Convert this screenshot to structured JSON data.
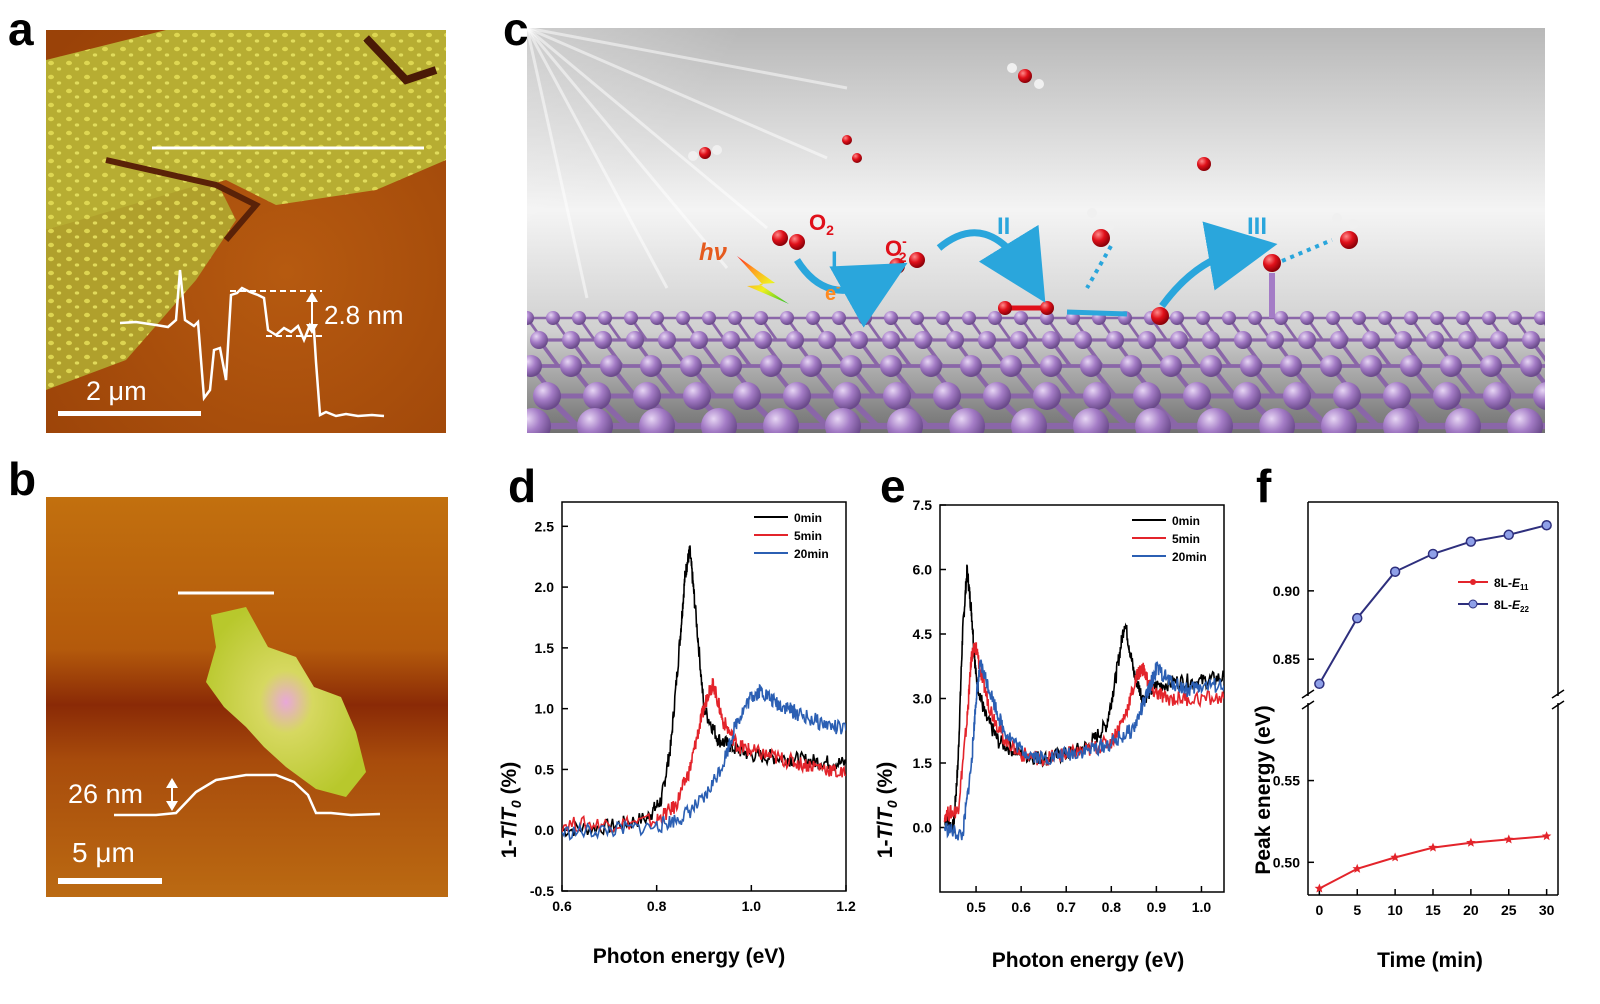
{
  "panel_labels": {
    "a": "a",
    "b": "b",
    "c": "c",
    "d": "d",
    "e": "e",
    "f": "f"
  },
  "panel_a": {
    "height_label": "2.8 nm",
    "scale_label": "2 μm"
  },
  "panel_b": {
    "height_label": "26 nm",
    "scale_label": "5 μm"
  },
  "panel_c": {
    "hv_label": "hν",
    "o2_label": "O",
    "o2_sub": "2",
    "o2minus_label": "O",
    "o2minus_sub": "2",
    "o2minus_sup": "-",
    "electron_label": "e",
    "electron_sup": "-",
    "step_1": "I",
    "step_2": "II",
    "step_3": "III",
    "colors": {
      "phosphorus": "#a47cc6",
      "oxygen": "#e0101a",
      "hydrogen": "#f0f0f0",
      "arrow": "#2aa6dc"
    }
  },
  "chart_data": [
    {
      "panel": "d",
      "type": "line",
      "xlabel": "Photon energy (eV)",
      "ylabel_prefix": "1-",
      "ylabel_T": "T",
      "ylabel_slash": "/",
      "ylabel_T0": "T",
      "ylabel_sub": "0",
      "ylabel_suffix": " (%)",
      "xlim": [
        0.6,
        1.2
      ],
      "ylim": [
        -0.5,
        2.7
      ],
      "x_ticks": [
        "0.6",
        "0.8",
        "1.0",
        "1.2"
      ],
      "y_ticks": [
        "-0.5",
        "0.0",
        "0.5",
        "1.0",
        "1.5",
        "2.0",
        "2.5"
      ],
      "legend_position": "top-right",
      "series": [
        {
          "name": "0min",
          "color": "#000000",
          "x": [
            0.6,
            0.7,
            0.78,
            0.81,
            0.83,
            0.85,
            0.86,
            0.87,
            0.88,
            0.9,
            0.93,
            0.96,
            1.0,
            1.05,
            1.1,
            1.15,
            1.2
          ],
          "y": [
            0.0,
            0.03,
            0.1,
            0.25,
            0.7,
            1.6,
            2.1,
            2.3,
            1.9,
            1.0,
            0.75,
            0.68,
            0.62,
            0.6,
            0.58,
            0.56,
            0.55
          ]
        },
        {
          "name": "5min",
          "color": "#e3242b",
          "x": [
            0.6,
            0.7,
            0.8,
            0.84,
            0.87,
            0.89,
            0.91,
            0.92,
            0.94,
            0.97,
            1.0,
            1.05,
            1.1,
            1.15,
            1.2
          ],
          "y": [
            0.05,
            0.05,
            0.08,
            0.2,
            0.5,
            0.85,
            1.15,
            1.2,
            0.9,
            0.7,
            0.65,
            0.6,
            0.55,
            0.52,
            0.45
          ]
        },
        {
          "name": "20min",
          "color": "#2b5fb3",
          "x": [
            0.6,
            0.7,
            0.8,
            0.85,
            0.9,
            0.94,
            0.97,
            1.0,
            1.02,
            1.05,
            1.08,
            1.1,
            1.15,
            1.2
          ],
          "y": [
            -0.02,
            0.0,
            0.03,
            0.1,
            0.25,
            0.55,
            0.9,
            1.1,
            1.15,
            1.05,
            1.0,
            0.95,
            0.88,
            0.82
          ]
        }
      ]
    },
    {
      "panel": "e",
      "type": "line",
      "xlabel": "Photon energy (eV)",
      "ylabel_prefix": "1-",
      "ylabel_T": "T",
      "ylabel_slash": "/",
      "ylabel_T0": "T",
      "ylabel_sub": "0",
      "ylabel_suffix": " (%)",
      "xlim": [
        0.42,
        1.05
      ],
      "ylim": [
        -1.5,
        7.5
      ],
      "x_ticks": [
        "0.5",
        "0.6",
        "0.7",
        "0.8",
        "0.9",
        "1.0"
      ],
      "y_ticks": [
        "0.0",
        "1.5",
        "3.0",
        "4.5",
        "6.0",
        "7.5"
      ],
      "legend_position": "top-right",
      "series": [
        {
          "name": "0min",
          "color": "#000000",
          "x": [
            0.43,
            0.45,
            0.46,
            0.47,
            0.48,
            0.49,
            0.5,
            0.52,
            0.55,
            0.6,
            0.65,
            0.7,
            0.75,
            0.79,
            0.81,
            0.83,
            0.85,
            0.87,
            0.9,
            0.95,
            1.0,
            1.05
          ],
          "y": [
            0.2,
            0.0,
            1.5,
            4.5,
            6.0,
            5.0,
            3.5,
            2.6,
            2.0,
            1.7,
            1.6,
            1.7,
            1.9,
            2.4,
            3.5,
            4.8,
            3.6,
            3.0,
            3.3,
            3.4,
            3.4,
            3.5
          ]
        },
        {
          "name": "5min",
          "color": "#e3242b",
          "x": [
            0.43,
            0.46,
            0.48,
            0.49,
            0.5,
            0.51,
            0.53,
            0.56,
            0.6,
            0.65,
            0.7,
            0.75,
            0.8,
            0.83,
            0.86,
            0.87,
            0.89,
            0.92,
            0.97,
            1.05
          ],
          "y": [
            0.3,
            0.4,
            2.5,
            4.0,
            4.2,
            3.6,
            2.8,
            2.1,
            1.7,
            1.6,
            1.7,
            1.8,
            2.0,
            2.6,
            3.6,
            3.7,
            3.2,
            3.0,
            3.0,
            3.0
          ]
        },
        {
          "name": "20min",
          "color": "#2b5fb3",
          "x": [
            0.43,
            0.47,
            0.49,
            0.5,
            0.51,
            0.53,
            0.56,
            0.6,
            0.65,
            0.7,
            0.75,
            0.8,
            0.85,
            0.88,
            0.9,
            0.93,
            0.97,
            1.0,
            1.05
          ],
          "y": [
            0.0,
            -0.2,
            1.5,
            3.0,
            3.8,
            3.2,
            2.3,
            1.8,
            1.6,
            1.7,
            1.8,
            1.95,
            2.3,
            3.1,
            3.7,
            3.4,
            3.2,
            3.3,
            3.3
          ]
        }
      ]
    },
    {
      "panel": "f",
      "type": "line",
      "xlabel": "Time (min)",
      "ylabel": "Peak energy (eV)",
      "xlim": [
        -1.5,
        31.5
      ],
      "x_ticks": [
        "0",
        "5",
        "10",
        "15",
        "20",
        "25",
        "30"
      ],
      "y_ticks_upper": [
        "0.85",
        "0.90"
      ],
      "y_ticks_lower": [
        "0.50",
        "0.55"
      ],
      "ylim_upper": [
        0.826,
        0.965
      ],
      "ylim_lower": [
        0.48,
        0.595
      ],
      "legend_position": "center-right",
      "series": [
        {
          "name": "8L-",
          "label_main": "E",
          "label_sub": "11",
          "color": "#e3242b",
          "marker": "star",
          "axis": "lower",
          "x": [
            0,
            5,
            10,
            15,
            20,
            25,
            30
          ],
          "y": [
            0.484,
            0.496,
            0.503,
            0.509,
            0.512,
            0.514,
            0.516
          ]
        },
        {
          "name": "8L-",
          "label_main": "E",
          "label_sub": "22",
          "color": "#2e2f7d",
          "marker": "circle",
          "axis": "upper",
          "x": [
            0,
            5,
            10,
            15,
            20,
            25,
            30
          ],
          "y": [
            0.832,
            0.88,
            0.914,
            0.927,
            0.936,
            0.941,
            0.948
          ]
        }
      ]
    }
  ]
}
